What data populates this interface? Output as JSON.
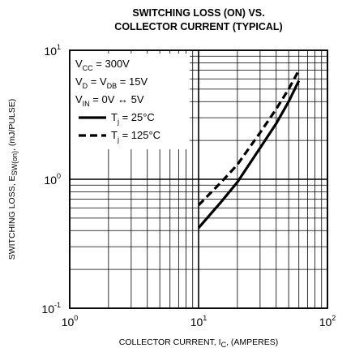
{
  "chart_data": {
    "type": "line",
    "title_line1": "SWITCHING LOSS (ON) VS.",
    "title_line2": "COLLECTOR CURRENT (TYPICAL)",
    "xlabel": {
      "main": "COLLECTOR CURRENT, I",
      "sub": "C",
      "end": ", (AMPERES)"
    },
    "ylabel": {
      "main": "SWITCHING LOSS, E",
      "sub": "SW(on)",
      "end": ",  (mJ/PULSE)"
    },
    "x_scale": "log",
    "y_scale": "log",
    "xlim": [
      1,
      100
    ],
    "ylim": [
      0.1,
      10
    ],
    "x_ticks": [
      {
        "value": 1,
        "base": "10",
        "exp": "0"
      },
      {
        "value": 10,
        "base": "10",
        "exp": "1"
      },
      {
        "value": 100,
        "base": "10",
        "exp": "2"
      }
    ],
    "y_ticks": [
      {
        "value": 0.1,
        "base": "10",
        "exp": "-1"
      },
      {
        "value": 1,
        "base": "10",
        "exp": "0"
      },
      {
        "value": 10,
        "base": "10",
        "exp": "1"
      }
    ],
    "grid": true,
    "conditions": [
      {
        "pre": "V",
        "sub": "CC",
        "post": " = 300V"
      },
      {
        "pre": "V",
        "sub": "D",
        "post": " = V",
        "sub2": "DB",
        "post2": " = 15V"
      },
      {
        "pre": "V",
        "sub": "IN",
        "post": " = 0V ↔ 5V"
      }
    ],
    "legend_position": "top-left",
    "series": [
      {
        "name": {
          "pre": "T",
          "sub": "j",
          "post": " = 25°C"
        },
        "line_style": "solid",
        "color": "#000000",
        "x": [
          10,
          15,
          20,
          30,
          40,
          50,
          60
        ],
        "y": [
          0.42,
          0.67,
          0.95,
          1.75,
          2.7,
          4.0,
          5.8
        ]
      },
      {
        "name": {
          "pre": "T",
          "sub": "j",
          "post": " = 125°C"
        },
        "line_style": "dashed",
        "color": "#000000",
        "x": [
          10,
          15,
          20,
          30,
          40,
          50,
          60
        ],
        "y": [
          0.63,
          0.95,
          1.3,
          2.3,
          3.5,
          5.0,
          7.0
        ]
      }
    ]
  }
}
